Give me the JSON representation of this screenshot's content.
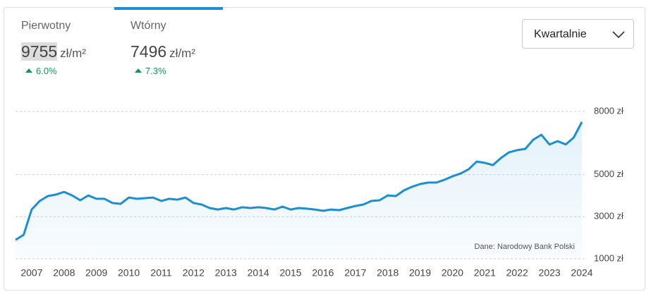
{
  "tabs": [
    {
      "label": "Pierwotny",
      "value": "9755",
      "unit": "zł/m²",
      "change": "6.0%"
    },
    {
      "label": "Wtórny",
      "value": "7496",
      "unit": "zł/m²",
      "change": "7.3%"
    }
  ],
  "dropdown": {
    "label": "Kwartalnie"
  },
  "chart_data": {
    "type": "line",
    "annotation": "Dane: Narodowy Bank Polski",
    "x": [
      2006.5,
      2006.75,
      2007,
      2007.25,
      2007.5,
      2007.75,
      2008,
      2008.25,
      2008.5,
      2008.75,
      2009,
      2009.25,
      2009.5,
      2009.75,
      2010,
      2010.25,
      2010.5,
      2010.75,
      2011,
      2011.25,
      2011.5,
      2011.75,
      2012,
      2012.25,
      2012.5,
      2012.75,
      2013,
      2013.25,
      2013.5,
      2013.75,
      2014,
      2014.25,
      2014.5,
      2014.75,
      2015,
      2015.25,
      2015.5,
      2015.75,
      2016,
      2016.25,
      2016.5,
      2016.75,
      2017,
      2017.25,
      2017.5,
      2017.75,
      2018,
      2018.25,
      2018.5,
      2018.75,
      2019,
      2019.25,
      2019.5,
      2019.75,
      2020,
      2020.25,
      2020.5,
      2020.75,
      2021,
      2021.25,
      2021.5,
      2021.75,
      2022,
      2022.25,
      2022.5,
      2022.75,
      2023,
      2023.25,
      2023.5,
      2023.75,
      2024
    ],
    "series": [
      {
        "name": "Wtórny",
        "color": "#1b8fd6",
        "values": [
          1900,
          2140,
          3340,
          3750,
          3980,
          4050,
          4180,
          4010,
          3780,
          4010,
          3850,
          3850,
          3650,
          3610,
          3910,
          3850,
          3880,
          3910,
          3750,
          3850,
          3810,
          3910,
          3650,
          3580,
          3410,
          3340,
          3410,
          3340,
          3450,
          3410,
          3450,
          3410,
          3340,
          3480,
          3340,
          3410,
          3380,
          3340,
          3280,
          3340,
          3310,
          3410,
          3510,
          3580,
          3750,
          3780,
          4010,
          3980,
          4250,
          4420,
          4550,
          4620,
          4620,
          4750,
          4920,
          5050,
          5250,
          5620,
          5560,
          5450,
          5790,
          6060,
          6160,
          6220,
          6660,
          6890,
          6430,
          6590,
          6430,
          6760,
          7496
        ]
      }
    ],
    "xlim": [
      2006.5,
      2024
    ],
    "xticks": [
      2007,
      2008,
      2009,
      2010,
      2011,
      2012,
      2013,
      2014,
      2015,
      2016,
      2017,
      2018,
      2019,
      2020,
      2021,
      2022,
      2023,
      2024
    ],
    "ylim": [
      1000,
      8000
    ],
    "yticks": [
      {
        "value": 1000,
        "label": "1000 zł"
      },
      {
        "value": 3000,
        "label": "3000 zł"
      },
      {
        "value": 5000,
        "label": "5000 zł"
      },
      {
        "value": 8000,
        "label": "8000 zł"
      }
    ],
    "grid": true
  }
}
